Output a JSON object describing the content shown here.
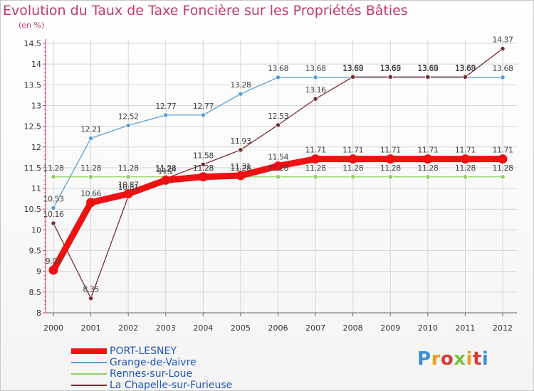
{
  "title": "Evolution du Taux de Taxe Foncière sur les Propriétés Bâties",
  "unit_label": "(en %)",
  "logo_text": "Proxiti",
  "logo_colors": [
    "#3a8fd8",
    "#e8a020",
    "#d83a3a",
    "#7ac043",
    "#e8a020",
    "#d83a3a",
    "#3a8fd8"
  ],
  "chart_data": {
    "type": "line",
    "title": "Evolution du Taux de Taxe Foncière sur les Propriétés Bâties",
    "ylabel": "(en %)",
    "xlabel": "",
    "ylim": [
      8,
      14.5
    ],
    "yticks": [
      "8",
      "8.5",
      "9",
      "9.5",
      "10",
      "10.5",
      "11",
      "11.5",
      "12",
      "12.5",
      "13",
      "13.5",
      "14",
      "14.5"
    ],
    "categories": [
      "2000",
      "2001",
      "2002",
      "2003",
      "2004",
      "2005",
      "2006",
      "2007",
      "2008",
      "2009",
      "2010",
      "2011",
      "2012"
    ],
    "grid": true,
    "legend_position": "bottom-left",
    "series": [
      {
        "name": "Grange-de-Vaivre",
        "color": "#5a9fd4",
        "values": [
          10.53,
          12.21,
          12.52,
          12.77,
          12.77,
          13.28,
          13.68,
          13.68,
          13.68,
          13.68,
          13.68,
          13.68,
          13.68
        ],
        "labels": [
          "10.53",
          "12.21",
          "12.52",
          "12.77",
          "12.77",
          "13.28",
          "13.68",
          "13.68",
          "13.68",
          "13.68",
          "13.68",
          "13.68",
          "13.68"
        ]
      },
      {
        "name": "Rennes-sur-Loue",
        "color": "#8ed060",
        "values": [
          11.28,
          11.28,
          11.28,
          11.28,
          11.28,
          11.28,
          11.28,
          11.28,
          11.28,
          11.28,
          11.28,
          11.28,
          11.28
        ],
        "labels": [
          "11.28",
          "11.28",
          "11.28",
          "11.28",
          "11.28",
          "11.28",
          "11.28",
          "11.28",
          "11.28",
          "11.28",
          "11.28",
          "11.28",
          "11.28"
        ]
      },
      {
        "name": "La Chapelle-sur-Furieuse",
        "color": "#7a2e2e",
        "values": [
          10.16,
          8.35,
          10.81,
          11.24,
          11.58,
          11.93,
          12.53,
          13.16,
          13.69,
          13.69,
          13.69,
          13.69,
          14.37
        ],
        "labels": [
          "10.16",
          "8.35",
          "10.81",
          "11.24",
          "11.58",
          "11.93",
          "12.53",
          "13.16",
          "13.69",
          "13.69",
          "13.69",
          "13.69",
          "14.37"
        ]
      },
      {
        "name": "PORT-LESNEY",
        "color": "#ee1111",
        "values": [
          9.03,
          10.66,
          10.87,
          11.2,
          11.28,
          11.31,
          11.54,
          11.71,
          11.71,
          11.71,
          11.71,
          11.71,
          11.71
        ],
        "labels": [
          "9.03",
          "10.66",
          "10.87",
          "11.2",
          "11.28",
          "11.31",
          "11.54",
          "11.71",
          "11.71",
          "11.71",
          "11.71",
          "11.71",
          "11.71"
        ]
      }
    ],
    "legend": [
      {
        "name": "PORT-LESNEY",
        "color": "#ee1111"
      },
      {
        "name": "Grange-de-Vaivre",
        "color": "#5a9fd4"
      },
      {
        "name": "Rennes-sur-Loue",
        "color": "#8ed060"
      },
      {
        "name": "La Chapelle-sur-Furieuse",
        "color": "#7a2e2e"
      }
    ]
  }
}
